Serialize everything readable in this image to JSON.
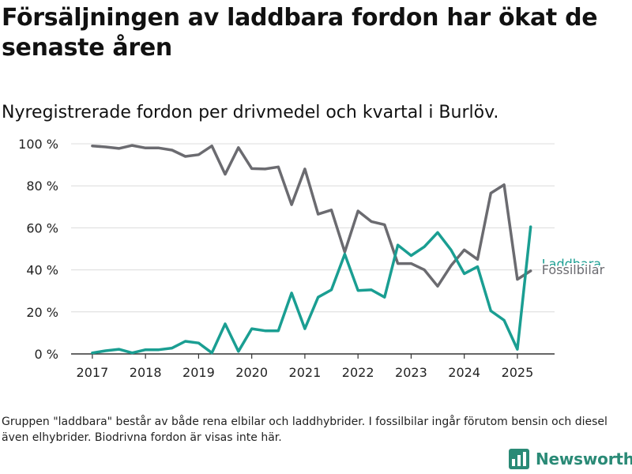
{
  "title": "Försäljningen av laddbara fordon har ökat de senaste åren",
  "subtitle": "Nyregistrerade fordon per drivmedel och kvartal i Burlöv.",
  "footnote": "Gruppen \"laddbara\" består av både rena elbilar och laddhybrider. I fossilbilar ingår förutom bensin och diesel även elhybrider. Biodrivna fordon är visas inte här.",
  "brand": {
    "name": "Newsworthy",
    "logo_icon": "bar-chart-logo-icon",
    "color": "#2a8a76"
  },
  "chart_data": {
    "type": "line",
    "x_tick_labels": [
      "2017",
      "2018",
      "2019",
      "2020",
      "2021",
      "2022",
      "2023",
      "2024",
      "2025"
    ],
    "x_tick_values": [
      2017,
      2018,
      2019,
      2020,
      2021,
      2022,
      2023,
      2024,
      2025
    ],
    "y_tick_labels": [
      "0 %",
      "20 %",
      "40 %",
      "60 %",
      "80 %",
      "100 %"
    ],
    "y_tick_values": [
      0,
      20,
      40,
      60,
      80,
      100
    ],
    "xlim": [
      2016.6,
      2025.7
    ],
    "ylim": [
      0,
      100
    ],
    "grid": true,
    "legend": "inline labels at line ends",
    "x": [
      2017.0,
      2017.25,
      2017.5,
      2017.75,
      2018.0,
      2018.25,
      2018.5,
      2018.75,
      2019.0,
      2019.25,
      2019.5,
      2019.75,
      2020.0,
      2020.25,
      2020.5,
      2020.75,
      2021.0,
      2021.25,
      2021.5,
      2021.75,
      2022.0,
      2022.25,
      2022.5,
      2022.75,
      2023.0,
      2023.25,
      2023.5,
      2023.75,
      2024.0,
      2024.25,
      2024.5,
      2024.75,
      2025.0,
      2025.25
    ],
    "series": [
      {
        "name": "Fossilbilar",
        "color": "#6b6b70",
        "values": [
          99,
          98.5,
          97.8,
          99.2,
          98,
          98,
          97,
          94,
          94.8,
          99,
          85.5,
          98.2,
          88.2,
          88,
          89,
          71,
          88,
          66.5,
          68.5,
          48.5,
          68,
          63,
          61.5,
          43,
          43,
          40,
          32.2,
          42,
          49.5,
          45,
          76.5,
          80.5,
          35.5,
          39.5
        ]
      },
      {
        "name": "Laddbara",
        "color": "#1a9e92",
        "values": [
          0.5,
          1.5,
          2.2,
          0.5,
          2,
          2,
          2.8,
          6,
          5.2,
          0.5,
          14.3,
          1.2,
          12,
          11,
          11,
          29,
          12,
          27,
          30.5,
          47.5,
          30.2,
          30.5,
          27,
          51.8,
          46.8,
          51,
          57.8,
          49.5,
          38.2,
          41.5,
          20.5,
          16,
          2.2,
          60.5
        ]
      }
    ]
  }
}
